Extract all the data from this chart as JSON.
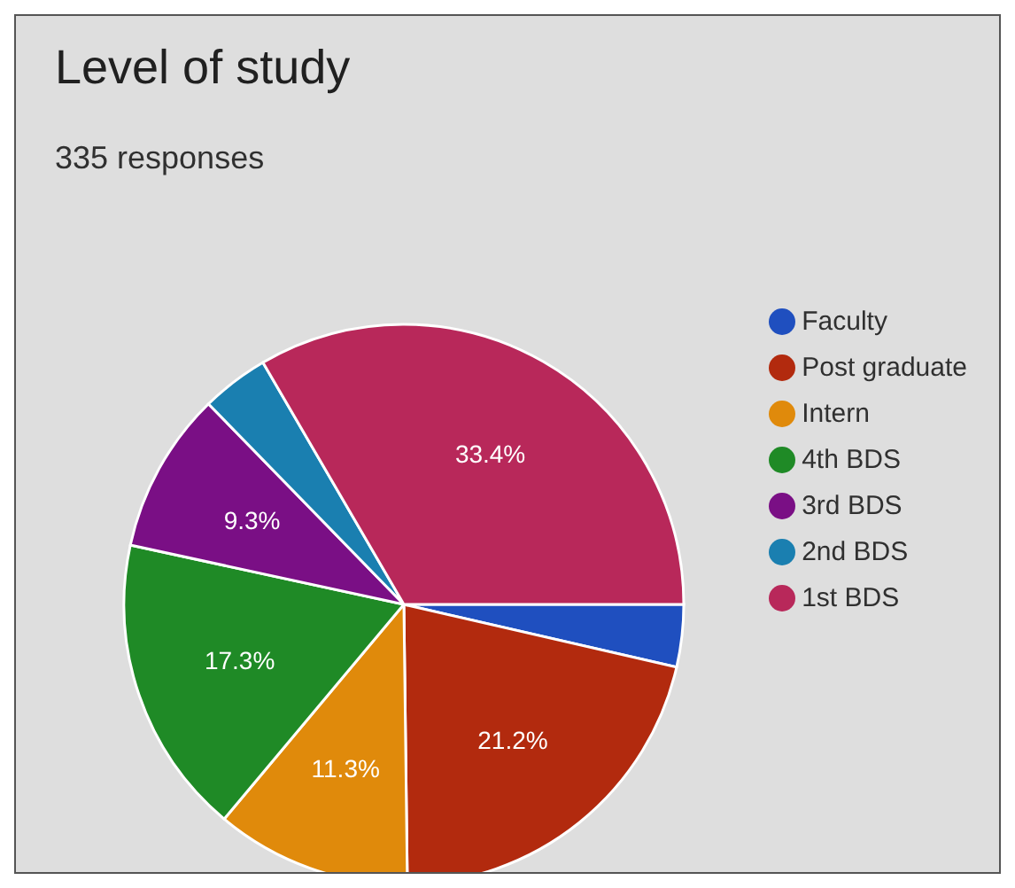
{
  "chart_data": {
    "type": "pie",
    "title": "Level of study",
    "subtitle": "335 responses",
    "categories": [
      "Faculty",
      "Post graduate",
      "Intern",
      "4th BDS",
      "3rd BDS",
      "2nd BDS",
      "1st BDS"
    ],
    "values": [
      3.6,
      21.2,
      11.3,
      17.3,
      9.3,
      3.9,
      33.4
    ],
    "colors": [
      "#1f4fbf",
      "#b22a0e",
      "#e08a0b",
      "#1f8a26",
      "#7a0f85",
      "#1a7fb0",
      "#b8285a"
    ],
    "value_labels": [
      null,
      "21.2%",
      "11.3%",
      "17.3%",
      "9.3%",
      null,
      "33.4%"
    ],
    "legend": "right"
  }
}
